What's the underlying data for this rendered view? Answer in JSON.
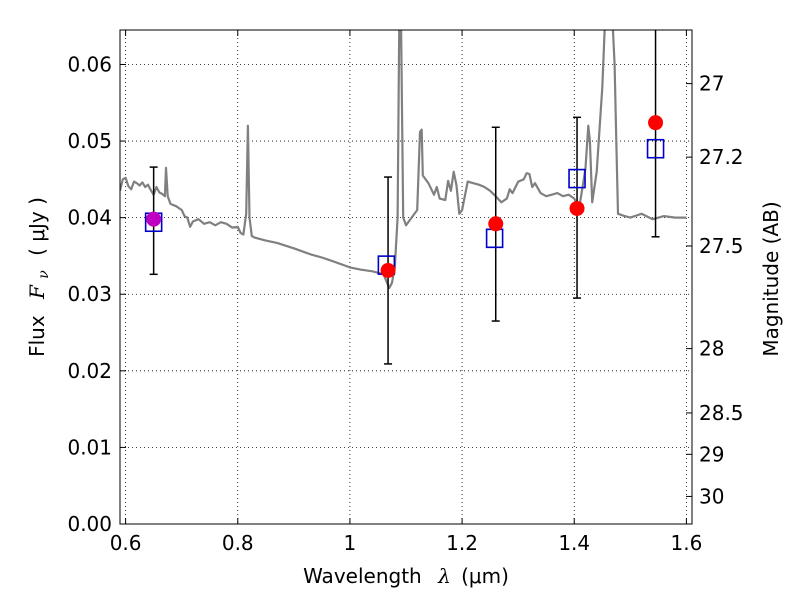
{
  "chart_data": {
    "type": "scatter",
    "xlabel": "Wavelength",
    "xlabel_symbol": "λ",
    "xlabel_unit": "(μm)",
    "ylabel": "Flux",
    "ylabel_symbol": "F",
    "ylabel_subscript": "ν",
    "ylabel_unit": "( μJy )",
    "y2label": "Magnitude (AB)",
    "xlim": [
      0.59,
      1.61
    ],
    "ylim": [
      0.0,
      0.0645
    ],
    "grid": true,
    "x_ticks": [
      0.6,
      0.8,
      1.0,
      1.2,
      1.4,
      1.6
    ],
    "x_tick_labels": [
      "0.6",
      "0.8",
      "1",
      "1.2",
      "1.4",
      "1.6"
    ],
    "y_ticks": [
      0.0,
      0.01,
      0.02,
      0.03,
      0.04,
      0.05,
      0.06
    ],
    "y_tick_labels": [
      "0.00",
      "0.01",
      "0.02",
      "0.03",
      "0.04",
      "0.05",
      "0.06"
    ],
    "y2_ticks": [
      {
        "label": "27",
        "flux": 0.0575
      },
      {
        "label": "27.2",
        "flux": 0.0479
      },
      {
        "label": "27.5",
        "flux": 0.0363
      },
      {
        "label": "28",
        "flux": 0.0229
      },
      {
        "label": "28.5",
        "flux": 0.0145
      },
      {
        "label": "29",
        "flux": 0.0091
      },
      {
        "label": "30",
        "flux": 0.0036
      }
    ],
    "series": [
      {
        "kind": "model_spectrum",
        "color": "#808080",
        "points": [
          [
            0.59,
            0.0435
          ],
          [
            0.595,
            0.045
          ],
          [
            0.6,
            0.0452
          ],
          [
            0.605,
            0.0441
          ],
          [
            0.61,
            0.0437
          ],
          [
            0.615,
            0.0447
          ],
          [
            0.62,
            0.0445
          ],
          [
            0.625,
            0.0442
          ],
          [
            0.63,
            0.0446
          ],
          [
            0.635,
            0.044
          ],
          [
            0.64,
            0.0443
          ],
          [
            0.645,
            0.0436
          ],
          [
            0.65,
            0.043
          ],
          [
            0.655,
            0.044
          ],
          [
            0.66,
            0.0433
          ],
          [
            0.665,
            0.0431
          ],
          [
            0.67,
            0.0428
          ],
          [
            0.672,
            0.0465
          ],
          [
            0.675,
            0.0428
          ],
          [
            0.68,
            0.0418
          ],
          [
            0.69,
            0.0415
          ],
          [
            0.7,
            0.041
          ],
          [
            0.705,
            0.0402
          ],
          [
            0.71,
            0.04
          ],
          [
            0.715,
            0.0388
          ],
          [
            0.72,
            0.0395
          ],
          [
            0.73,
            0.0398
          ],
          [
            0.74,
            0.0392
          ],
          [
            0.75,
            0.0394
          ],
          [
            0.76,
            0.039
          ],
          [
            0.77,
            0.0394
          ],
          [
            0.78,
            0.0392
          ],
          [
            0.79,
            0.0387
          ],
          [
            0.8,
            0.0388
          ],
          [
            0.805,
            0.038
          ],
          [
            0.81,
            0.0378
          ],
          [
            0.815,
            0.0405
          ],
          [
            0.818,
            0.052
          ],
          [
            0.821,
            0.04
          ],
          [
            0.825,
            0.0376
          ],
          [
            0.83,
            0.0374
          ],
          [
            0.84,
            0.0372
          ],
          [
            0.85,
            0.037
          ],
          [
            0.87,
            0.0367
          ],
          [
            0.9,
            0.036
          ],
          [
            0.93,
            0.0352
          ],
          [
            0.95,
            0.0348
          ],
          [
            0.97,
            0.0343
          ],
          [
            1.0,
            0.0335
          ],
          [
            1.02,
            0.0332
          ],
          [
            1.04,
            0.033
          ],
          [
            1.06,
            0.0326
          ],
          [
            1.07,
            0.0308
          ],
          [
            1.075,
            0.0315
          ],
          [
            1.08,
            0.0335
          ],
          [
            1.085,
            0.04
          ],
          [
            1.088,
            0.066
          ],
          [
            1.091,
            0.066
          ],
          [
            1.095,
            0.04
          ],
          [
            1.1,
            0.039
          ],
          [
            1.11,
            0.04
          ],
          [
            1.12,
            0.041
          ],
          [
            1.125,
            0.0512
          ],
          [
            1.128,
            0.0515
          ],
          [
            1.13,
            0.0455
          ],
          [
            1.14,
            0.0445
          ],
          [
            1.15,
            0.043
          ],
          [
            1.155,
            0.044
          ],
          [
            1.16,
            0.0425
          ],
          [
            1.17,
            0.0423
          ],
          [
            1.175,
            0.0448
          ],
          [
            1.18,
            0.0435
          ],
          [
            1.185,
            0.046
          ],
          [
            1.19,
            0.0442
          ],
          [
            1.195,
            0.0405
          ],
          [
            1.2,
            0.041
          ],
          [
            1.21,
            0.0447
          ],
          [
            1.22,
            0.0445
          ],
          [
            1.23,
            0.0443
          ],
          [
            1.24,
            0.044
          ],
          [
            1.25,
            0.0435
          ],
          [
            1.26,
            0.0428
          ],
          [
            1.27,
            0.042
          ],
          [
            1.28,
            0.0425
          ],
          [
            1.285,
            0.0437
          ],
          [
            1.29,
            0.0432
          ],
          [
            1.3,
            0.0447
          ],
          [
            1.31,
            0.045
          ],
          [
            1.315,
            0.0458
          ],
          [
            1.32,
            0.0457
          ],
          [
            1.325,
            0.044
          ],
          [
            1.33,
            0.0445
          ],
          [
            1.34,
            0.0432
          ],
          [
            1.35,
            0.0428
          ],
          [
            1.36,
            0.043
          ],
          [
            1.37,
            0.0432
          ],
          [
            1.38,
            0.0428
          ],
          [
            1.39,
            0.043
          ],
          [
            1.4,
            0.0425
          ],
          [
            1.405,
            0.0418
          ],
          [
            1.41,
            0.0418
          ],
          [
            1.415,
            0.044
          ],
          [
            1.42,
            0.0465
          ],
          [
            1.425,
            0.052
          ],
          [
            1.428,
            0.05
          ],
          [
            1.432,
            0.042
          ],
          [
            1.44,
            0.046
          ],
          [
            1.45,
            0.057
          ],
          [
            1.455,
            0.066
          ],
          [
            1.468,
            0.066
          ],
          [
            1.472,
            0.06
          ],
          [
            1.475,
            0.05
          ],
          [
            1.478,
            0.0405
          ],
          [
            1.49,
            0.0402
          ],
          [
            1.5,
            0.04
          ],
          [
            1.52,
            0.0405
          ],
          [
            1.54,
            0.0398
          ],
          [
            1.56,
            0.0402
          ],
          [
            1.58,
            0.04
          ],
          [
            1.6,
            0.04
          ]
        ]
      },
      {
        "kind": "open_squares",
        "color": "#0000cc",
        "points": [
          [
            0.65,
            0.0394
          ],
          [
            1.065,
            0.0338
          ],
          [
            1.258,
            0.0373
          ],
          [
            1.405,
            0.0451
          ],
          [
            1.545,
            0.049
          ]
        ]
      },
      {
        "kind": "filled_circles_with_errorbars",
        "color": "#ff0000",
        "points": [
          {
            "x": 0.65,
            "y": 0.0398,
            "ylow": 0.0326,
            "yhigh": 0.0466
          },
          {
            "x": 1.068,
            "y": 0.0331,
            "ylow": 0.0209,
            "yhigh": 0.0453
          },
          {
            "x": 1.26,
            "y": 0.0392,
            "ylow": 0.0265,
            "yhigh": 0.0518
          },
          {
            "x": 1.405,
            "y": 0.0412,
            "ylow": 0.0295,
            "yhigh": 0.0531
          },
          {
            "x": 1.545,
            "y": 0.0524,
            "ylow": 0.0375,
            "yhigh": 0.065
          }
        ]
      }
    ]
  }
}
